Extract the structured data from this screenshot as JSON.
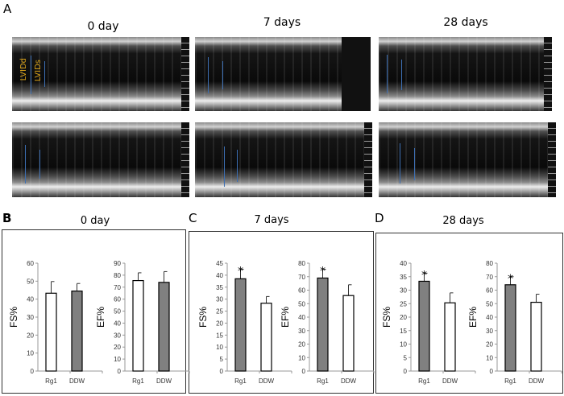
{
  "panel_labels": {
    "a": "A",
    "b": "B",
    "c": "C",
    "d": "D"
  },
  "echo": {
    "titles": [
      "0 day",
      "7 days",
      "28 days"
    ],
    "annotations": [
      "LVIDd",
      "LVIDs"
    ],
    "colors": {
      "marker": "#3d6fb3",
      "annotation": "#d9a21a"
    }
  },
  "chart_data": [
    {
      "type": "bar",
      "title": "0 day",
      "charts": [
        {
          "ylabel": "FS%",
          "ylim": [
            0,
            60
          ],
          "yticks": [
            0,
            10,
            20,
            30,
            40,
            50,
            60
          ],
          "categories": [
            "Rg1",
            "DDW"
          ],
          "values": [
            43.3,
            44.5
          ],
          "errors": [
            6.5,
            4.2
          ],
          "fills": [
            "#ffffff",
            "#808080"
          ],
          "significance": [
            "",
            ""
          ]
        },
        {
          "ylabel": "EF%",
          "ylim": [
            0,
            90
          ],
          "yticks": [
            0,
            10,
            20,
            30,
            40,
            50,
            60,
            70,
            80,
            90
          ],
          "categories": [
            "Rg1",
            "DDW"
          ],
          "values": [
            75.5,
            74
          ],
          "errors": [
            6.5,
            9
          ],
          "fills": [
            "#ffffff",
            "#808080"
          ],
          "significance": [
            "",
            ""
          ]
        }
      ]
    },
    {
      "type": "bar",
      "title": "7 days",
      "charts": [
        {
          "ylabel": "FS%",
          "ylim": [
            0,
            45
          ],
          "yticks": [
            0,
            5,
            10,
            15,
            20,
            25,
            30,
            35,
            40,
            45
          ],
          "categories": [
            "Rg1",
            "DDW"
          ],
          "values": [
            38.5,
            28.3
          ],
          "errors": [
            4,
            2.8
          ],
          "fills": [
            "#808080",
            "#ffffff"
          ],
          "significance": [
            "*",
            ""
          ]
        },
        {
          "ylabel": "EF%",
          "ylim": [
            0,
            80
          ],
          "yticks": [
            0,
            10,
            20,
            30,
            40,
            50,
            60,
            70,
            80
          ],
          "categories": [
            "Rg1",
            "DDW"
          ],
          "values": [
            69,
            56
          ],
          "errors": [
            6.5,
            8
          ],
          "fills": [
            "#808080",
            "#ffffff"
          ],
          "significance": [
            "*",
            ""
          ]
        }
      ]
    },
    {
      "type": "bar",
      "title": "28 days",
      "charts": [
        {
          "ylabel": "FS%",
          "ylim": [
            0,
            40
          ],
          "yticks": [
            0,
            5,
            10,
            15,
            20,
            25,
            30,
            35,
            40
          ],
          "categories": [
            "Rg1",
            "DDW"
          ],
          "values": [
            33.3,
            25.3
          ],
          "errors": [
            3,
            3.7
          ],
          "fills": [
            "#808080",
            "#ffffff"
          ],
          "significance": [
            "*",
            ""
          ]
        },
        {
          "ylabel": "EF%",
          "ylim": [
            0,
            80
          ],
          "yticks": [
            0,
            10,
            20,
            30,
            40,
            50,
            60,
            70,
            80
          ],
          "categories": [
            "Rg1",
            "DDW"
          ],
          "values": [
            64,
            51
          ],
          "errors": [
            6,
            6
          ],
          "fills": [
            "#808080",
            "#ffffff"
          ],
          "significance": [
            "*",
            ""
          ]
        }
      ]
    }
  ]
}
